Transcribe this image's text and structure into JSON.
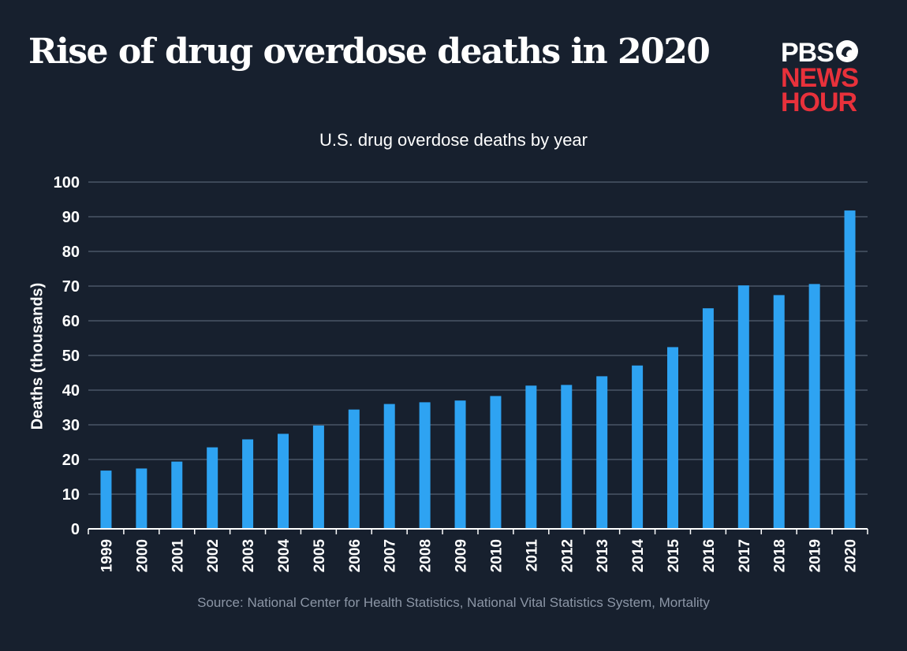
{
  "header": {
    "title": "Rise of drug overdose deaths in 2020",
    "logo": {
      "line1": "PBS",
      "line2": "NEWS",
      "line3": "HOUR",
      "mark_icon": "pbs-head-icon"
    }
  },
  "footer": {
    "source": "Source: National Center for Health Statistics, National Vital Statistics System, Mortality"
  },
  "colors": {
    "background": "#17202e",
    "bar": "#2ea3f2",
    "grid": "#4a5566",
    "logo_red": "#e8313b"
  },
  "chart_data": {
    "type": "bar",
    "title": "U.S. drug overdose deaths by year",
    "xlabel": "",
    "ylabel": "Deaths (thousands)",
    "ylim": [
      0,
      100
    ],
    "yticks": [
      0,
      10,
      20,
      30,
      40,
      50,
      60,
      70,
      80,
      90,
      100
    ],
    "grid": true,
    "categories": [
      "1999",
      "2000",
      "2001",
      "2002",
      "2003",
      "2004",
      "2005",
      "2006",
      "2007",
      "2008",
      "2009",
      "2010",
      "2011",
      "2012",
      "2013",
      "2014",
      "2015",
      "2016",
      "2017",
      "2018",
      "2019",
      "2020"
    ],
    "values": [
      16.8,
      17.4,
      19.4,
      23.5,
      25.8,
      27.4,
      29.8,
      34.4,
      36.0,
      36.5,
      37.0,
      38.3,
      41.3,
      41.5,
      44.0,
      47.1,
      52.4,
      63.6,
      70.2,
      67.4,
      70.6,
      91.8
    ]
  }
}
